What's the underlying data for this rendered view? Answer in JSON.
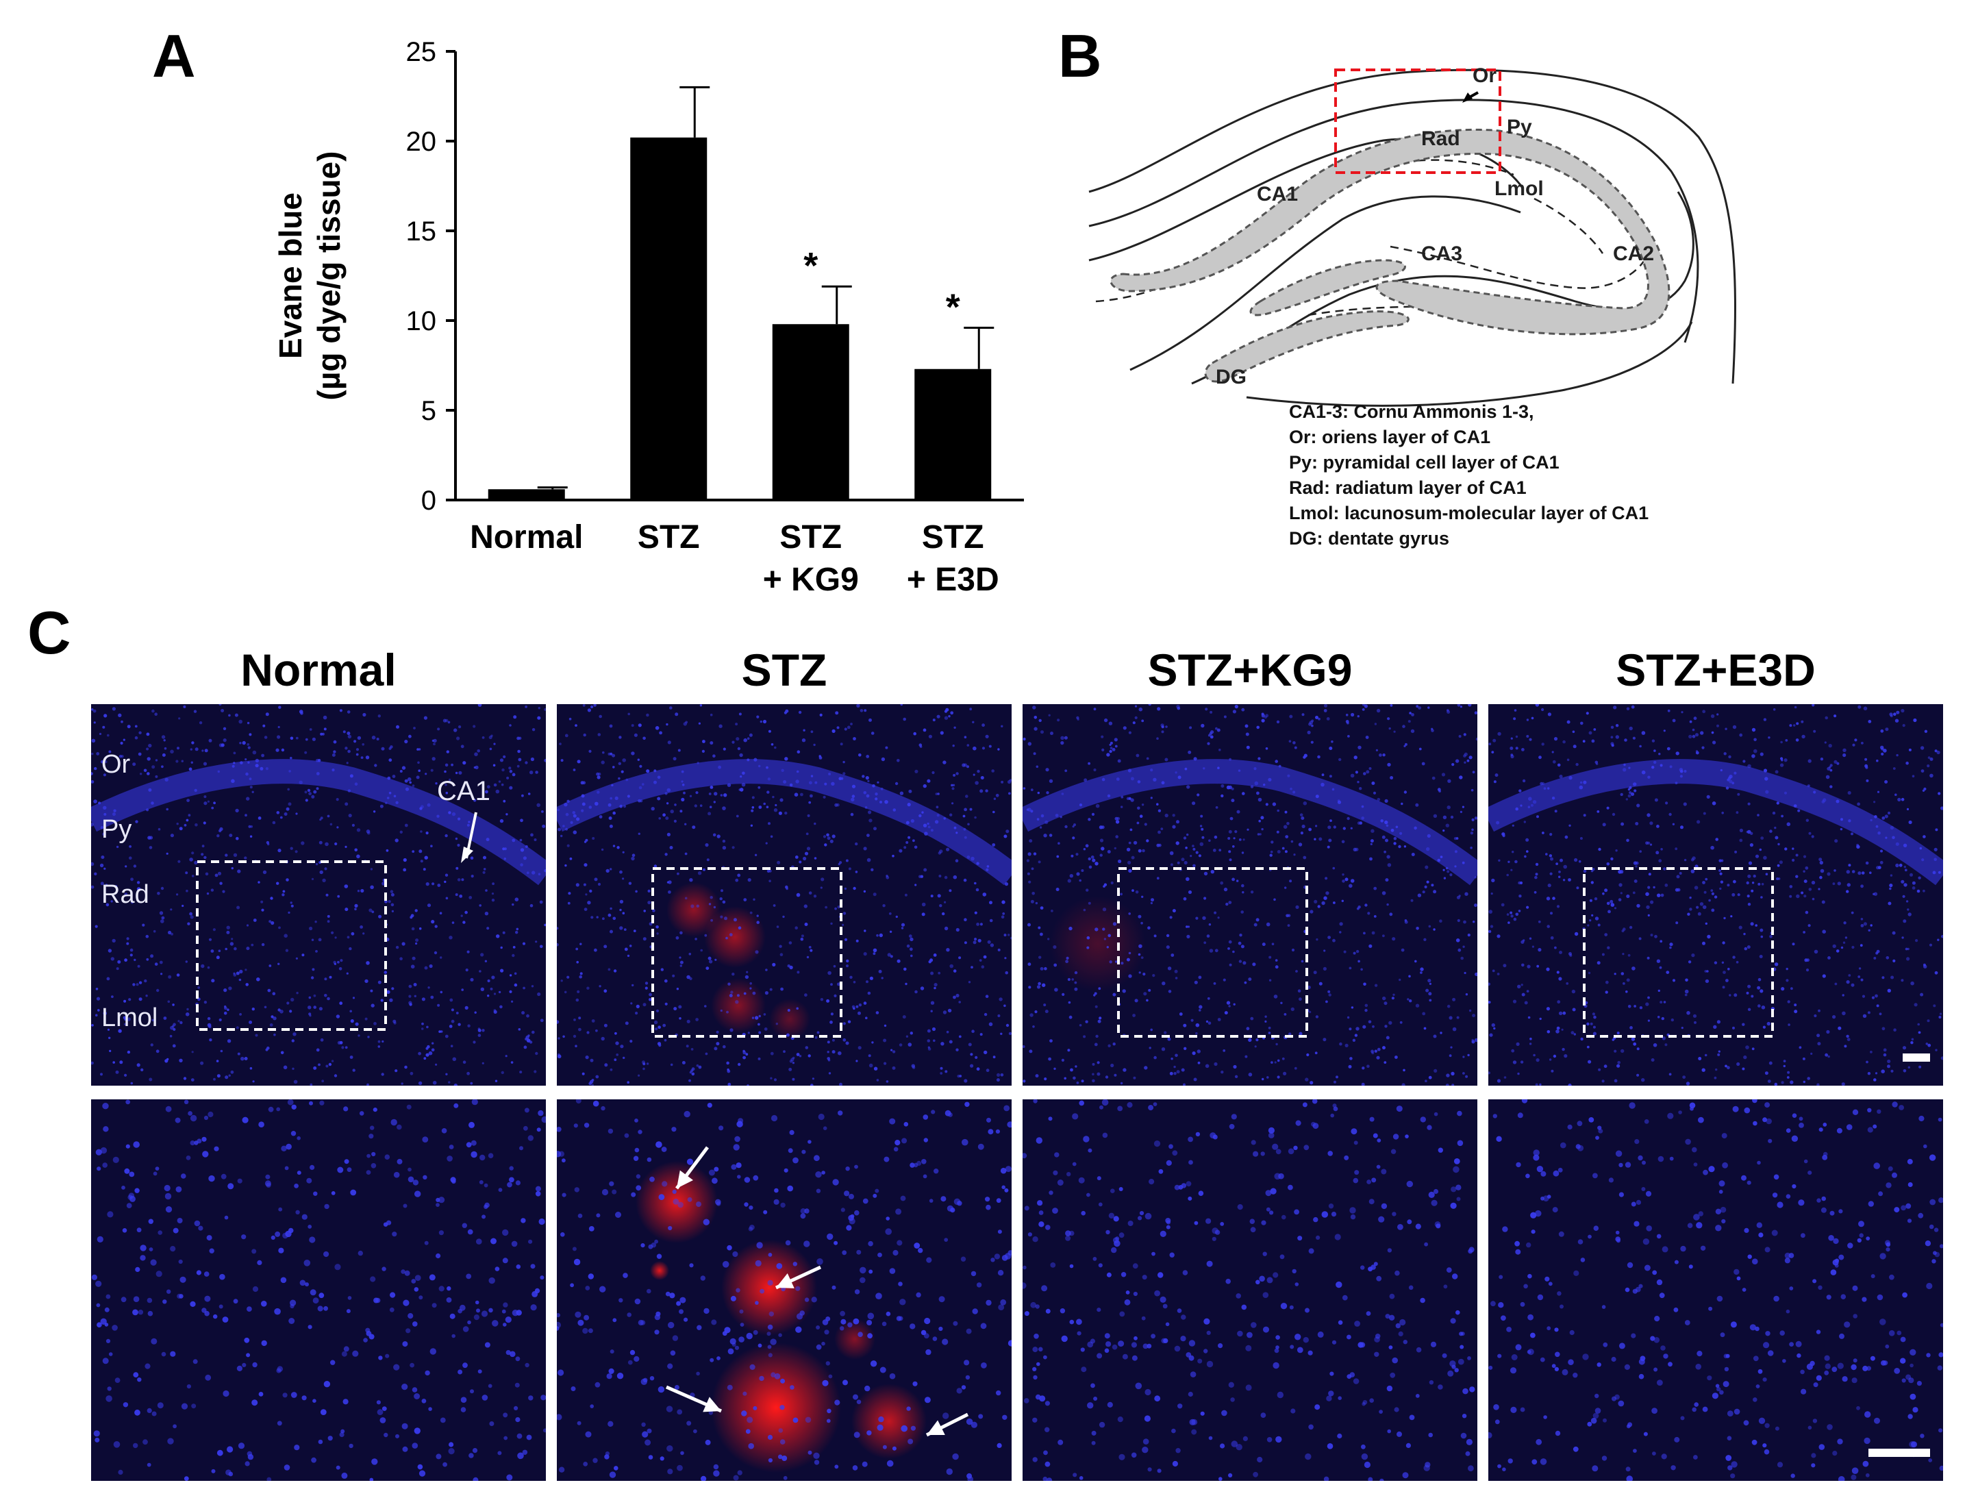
{
  "panels": {
    "a": {
      "letter": "A"
    },
    "b": {
      "letter": "B"
    },
    "c": {
      "letter": "C"
    }
  },
  "chart_data": {
    "type": "bar",
    "categories": [
      "Normal",
      "STZ",
      "STZ\n+ KG9",
      "STZ\n+ E3D"
    ],
    "category_lines": [
      [
        "Normal"
      ],
      [
        "STZ"
      ],
      [
        "STZ",
        "+ KG9"
      ],
      [
        "STZ",
        "+ E3D"
      ]
    ],
    "values": [
      0.6,
      20.2,
      9.8,
      7.3
    ],
    "errors": [
      0.1,
      2.8,
      2.1,
      2.3
    ],
    "significance": [
      "",
      "",
      "*",
      "*"
    ],
    "ylabel_lines": [
      "Evane blue",
      "(µg dye/g tissue)"
    ],
    "ylim": [
      0,
      25
    ],
    "yticks": [
      0,
      5,
      10,
      15,
      20,
      25
    ],
    "bar_color": "#000000",
    "grid": false
  },
  "diagram": {
    "region_labels": [
      "Or",
      "Py",
      "Rad",
      "Lmol",
      "CA1",
      "CA2",
      "CA3",
      "DG"
    ],
    "box_color": "#e8141c",
    "legend": [
      "CA1-3: Cornu Ammonis 1-3,",
      "Or: oriens layer of CA1",
      "Py: pyramidal cell layer of CA1",
      "Rad: radiatum layer of CA1",
      "Lmol: lacunosum-molecular layer of CA1",
      "DG: dentate gyrus"
    ]
  },
  "micrographs": {
    "columns": [
      "Normal",
      "STZ",
      "STZ+KG9",
      "STZ+E3D"
    ],
    "layer_labels": [
      "Or",
      "Py",
      "Rad",
      "Lmol"
    ],
    "region_label": "CA1",
    "nuclei_color": "#3a3cf0",
    "dye_color": "#ff1a1a",
    "background_color": "#0c0a34"
  }
}
